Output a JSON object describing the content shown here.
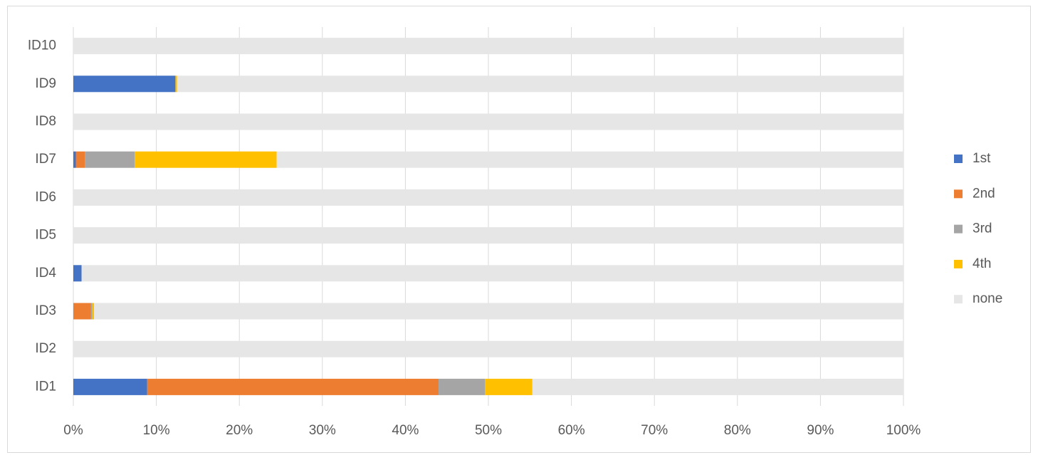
{
  "chart_data": {
    "type": "bar",
    "orientation": "horizontal",
    "stacked": true,
    "categories": [
      "ID1",
      "ID2",
      "ID3",
      "ID4",
      "ID5",
      "ID6",
      "ID7",
      "ID8",
      "ID9",
      "ID10"
    ],
    "series": [
      {
        "name": "1st",
        "color": "#4472c4",
        "values": [
          8.9,
          0,
          0,
          1.0,
          0,
          0,
          0.3,
          0,
          12.3,
          0
        ]
      },
      {
        "name": "2nd",
        "color": "#ed7d31",
        "values": [
          35.1,
          0,
          2.1,
          0,
          0,
          0,
          1.1,
          0,
          0,
          0
        ]
      },
      {
        "name": "3rd",
        "color": "#a5a5a5",
        "values": [
          5.6,
          0,
          0.2,
          0,
          0,
          0,
          6.0,
          0,
          0,
          0
        ]
      },
      {
        "name": "4th",
        "color": "#ffc000",
        "values": [
          5.7,
          0,
          0.2,
          0,
          0,
          0,
          17.1,
          0,
          0.2,
          0
        ]
      },
      {
        "name": "none",
        "color": "#e7e6e6",
        "values": [
          44.7,
          100,
          97.5,
          99.0,
          100,
          100,
          75.5,
          100,
          87.5,
          100
        ]
      }
    ],
    "xlim": [
      0,
      100
    ],
    "xticks": [
      {
        "value": 0,
        "label": "0%"
      },
      {
        "value": 10,
        "label": "10%"
      },
      {
        "value": 20,
        "label": "20%"
      },
      {
        "value": 30,
        "label": "30%"
      },
      {
        "value": 40,
        "label": "40%"
      },
      {
        "value": 50,
        "label": "50%"
      },
      {
        "value": 60,
        "label": "60%"
      },
      {
        "value": 70,
        "label": "70%"
      },
      {
        "value": 80,
        "label": "80%"
      },
      {
        "value": 90,
        "label": "90%"
      },
      {
        "value": 100,
        "label": "100%"
      }
    ],
    "grid": true,
    "legend": "right"
  }
}
